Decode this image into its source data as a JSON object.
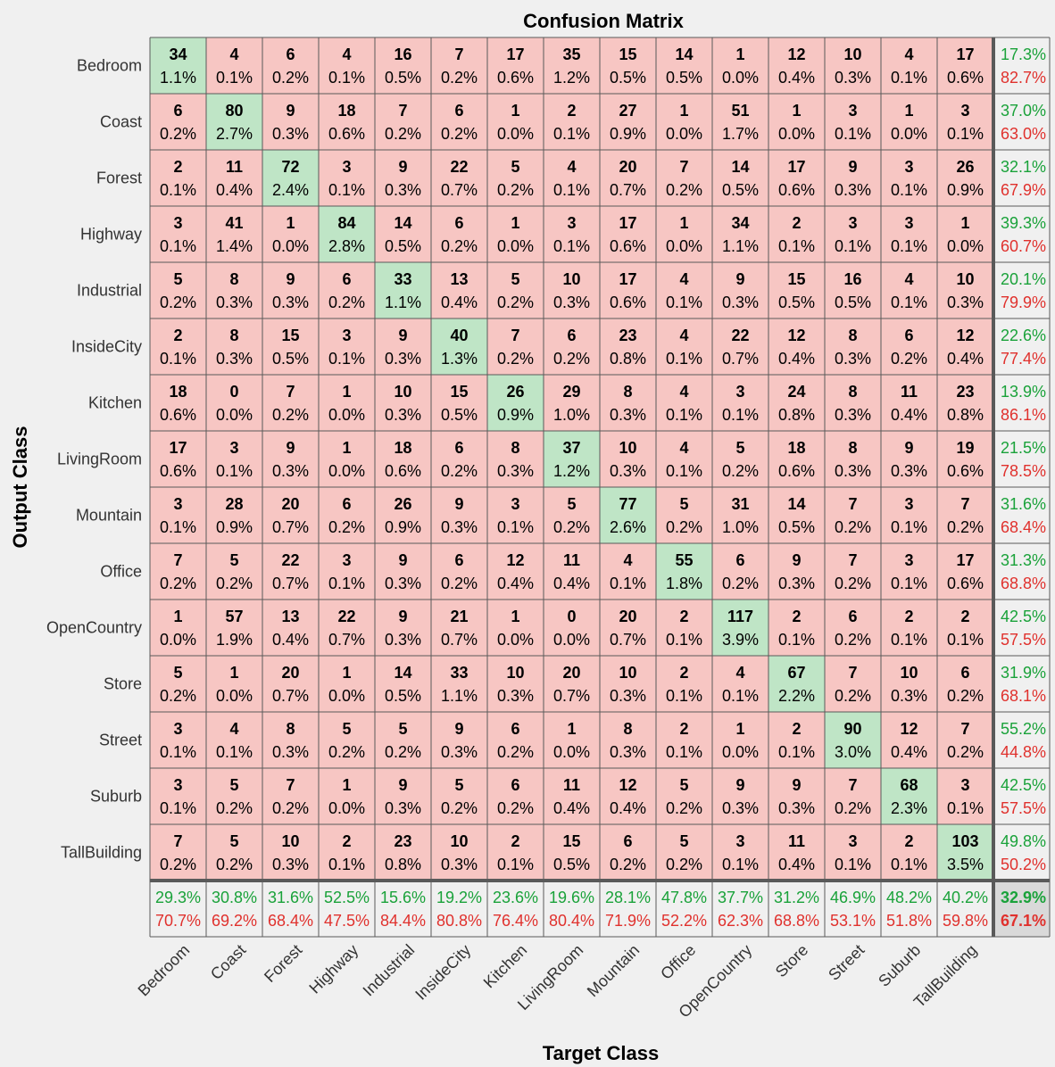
{
  "chart_data": {
    "type": "heatmap",
    "title": "Confusion Matrix",
    "xlabel": "Target Class",
    "ylabel": "Output Class",
    "classes": [
      "Bedroom",
      "Coast",
      "Forest",
      "Highway",
      "Industrial",
      "InsideCity",
      "Kitchen",
      "LivingRoom",
      "Mountain",
      "Office",
      "OpenCountry",
      "Store",
      "Street",
      "Suburb",
      "TallBuilding"
    ],
    "counts": [
      [
        34,
        4,
        6,
        4,
        16,
        7,
        17,
        35,
        15,
        14,
        1,
        12,
        10,
        4,
        17
      ],
      [
        6,
        80,
        9,
        18,
        7,
        6,
        1,
        2,
        27,
        1,
        51,
        1,
        3,
        1,
        3
      ],
      [
        2,
        11,
        72,
        3,
        9,
        22,
        5,
        4,
        20,
        7,
        14,
        17,
        9,
        3,
        26
      ],
      [
        3,
        41,
        1,
        84,
        14,
        6,
        1,
        3,
        17,
        1,
        34,
        2,
        3,
        3,
        1
      ],
      [
        5,
        8,
        9,
        6,
        33,
        13,
        5,
        10,
        17,
        4,
        9,
        15,
        16,
        4,
        10
      ],
      [
        2,
        8,
        15,
        3,
        9,
        40,
        7,
        6,
        23,
        4,
        22,
        12,
        8,
        6,
        12
      ],
      [
        18,
        0,
        7,
        1,
        10,
        15,
        26,
        29,
        8,
        4,
        3,
        24,
        8,
        11,
        23
      ],
      [
        17,
        3,
        9,
        1,
        18,
        6,
        8,
        37,
        10,
        4,
        5,
        18,
        8,
        9,
        19
      ],
      [
        3,
        28,
        20,
        6,
        26,
        9,
        3,
        5,
        77,
        5,
        31,
        14,
        7,
        3,
        7
      ],
      [
        7,
        5,
        22,
        3,
        9,
        6,
        12,
        11,
        4,
        55,
        6,
        9,
        7,
        3,
        17
      ],
      [
        1,
        57,
        13,
        22,
        9,
        21,
        1,
        0,
        20,
        2,
        117,
        2,
        6,
        2,
        2
      ],
      [
        5,
        1,
        20,
        1,
        14,
        33,
        10,
        20,
        10,
        2,
        4,
        67,
        7,
        10,
        6
      ],
      [
        3,
        4,
        8,
        5,
        5,
        9,
        6,
        1,
        8,
        2,
        1,
        2,
        90,
        12,
        7
      ],
      [
        3,
        5,
        7,
        1,
        9,
        5,
        6,
        11,
        12,
        5,
        9,
        9,
        7,
        68,
        3
      ],
      [
        7,
        5,
        10,
        2,
        23,
        10,
        2,
        15,
        6,
        5,
        3,
        11,
        3,
        2,
        103
      ]
    ],
    "percents": [
      [
        "1.1%",
        "0.1%",
        "0.2%",
        "0.1%",
        "0.5%",
        "0.2%",
        "0.6%",
        "1.2%",
        "0.5%",
        "0.5%",
        "0.0%",
        "0.4%",
        "0.3%",
        "0.1%",
        "0.6%"
      ],
      [
        "0.2%",
        "2.7%",
        "0.3%",
        "0.6%",
        "0.2%",
        "0.2%",
        "0.0%",
        "0.1%",
        "0.9%",
        "0.0%",
        "1.7%",
        "0.0%",
        "0.1%",
        "0.0%",
        "0.1%"
      ],
      [
        "0.1%",
        "0.4%",
        "2.4%",
        "0.1%",
        "0.3%",
        "0.7%",
        "0.2%",
        "0.1%",
        "0.7%",
        "0.2%",
        "0.5%",
        "0.6%",
        "0.3%",
        "0.1%",
        "0.9%"
      ],
      [
        "0.1%",
        "1.4%",
        "0.0%",
        "2.8%",
        "0.5%",
        "0.2%",
        "0.0%",
        "0.1%",
        "0.6%",
        "0.0%",
        "1.1%",
        "0.1%",
        "0.1%",
        "0.1%",
        "0.0%"
      ],
      [
        "0.2%",
        "0.3%",
        "0.3%",
        "0.2%",
        "1.1%",
        "0.4%",
        "0.2%",
        "0.3%",
        "0.6%",
        "0.1%",
        "0.3%",
        "0.5%",
        "0.5%",
        "0.1%",
        "0.3%"
      ],
      [
        "0.1%",
        "0.3%",
        "0.5%",
        "0.1%",
        "0.3%",
        "1.3%",
        "0.2%",
        "0.2%",
        "0.8%",
        "0.1%",
        "0.7%",
        "0.4%",
        "0.3%",
        "0.2%",
        "0.4%"
      ],
      [
        "0.6%",
        "0.0%",
        "0.2%",
        "0.0%",
        "0.3%",
        "0.5%",
        "0.9%",
        "1.0%",
        "0.3%",
        "0.1%",
        "0.1%",
        "0.8%",
        "0.3%",
        "0.4%",
        "0.8%"
      ],
      [
        "0.6%",
        "0.1%",
        "0.3%",
        "0.0%",
        "0.6%",
        "0.2%",
        "0.3%",
        "1.2%",
        "0.3%",
        "0.1%",
        "0.2%",
        "0.6%",
        "0.3%",
        "0.3%",
        "0.6%"
      ],
      [
        "0.1%",
        "0.9%",
        "0.7%",
        "0.2%",
        "0.9%",
        "0.3%",
        "0.1%",
        "0.2%",
        "2.6%",
        "0.2%",
        "1.0%",
        "0.5%",
        "0.2%",
        "0.1%",
        "0.2%"
      ],
      [
        "0.2%",
        "0.2%",
        "0.7%",
        "0.1%",
        "0.3%",
        "0.2%",
        "0.4%",
        "0.4%",
        "0.1%",
        "1.8%",
        "0.2%",
        "0.3%",
        "0.2%",
        "0.1%",
        "0.6%"
      ],
      [
        "0.0%",
        "1.9%",
        "0.4%",
        "0.7%",
        "0.3%",
        "0.7%",
        "0.0%",
        "0.0%",
        "0.7%",
        "0.1%",
        "3.9%",
        "0.1%",
        "0.2%",
        "0.1%",
        "0.1%"
      ],
      [
        "0.2%",
        "0.0%",
        "0.7%",
        "0.0%",
        "0.5%",
        "1.1%",
        "0.3%",
        "0.7%",
        "0.3%",
        "0.1%",
        "0.1%",
        "2.2%",
        "0.2%",
        "0.3%",
        "0.2%"
      ],
      [
        "0.1%",
        "0.1%",
        "0.3%",
        "0.2%",
        "0.2%",
        "0.3%",
        "0.2%",
        "0.0%",
        "0.3%",
        "0.1%",
        "0.0%",
        "0.1%",
        "3.0%",
        "0.4%",
        "0.2%"
      ],
      [
        "0.1%",
        "0.2%",
        "0.2%",
        "0.0%",
        "0.3%",
        "0.2%",
        "0.2%",
        "0.4%",
        "0.4%",
        "0.2%",
        "0.3%",
        "0.3%",
        "0.2%",
        "2.3%",
        "0.1%"
      ],
      [
        "0.2%",
        "0.2%",
        "0.3%",
        "0.1%",
        "0.8%",
        "0.3%",
        "0.1%",
        "0.5%",
        "0.2%",
        "0.2%",
        "0.1%",
        "0.4%",
        "0.1%",
        "0.1%",
        "3.5%"
      ]
    ],
    "row_summary": [
      [
        "17.3%",
        "82.7%"
      ],
      [
        "37.0%",
        "63.0%"
      ],
      [
        "32.1%",
        "67.9%"
      ],
      [
        "39.3%",
        "60.7%"
      ],
      [
        "20.1%",
        "79.9%"
      ],
      [
        "22.6%",
        "77.4%"
      ],
      [
        "13.9%",
        "86.1%"
      ],
      [
        "21.5%",
        "78.5%"
      ],
      [
        "31.6%",
        "68.4%"
      ],
      [
        "31.3%",
        "68.8%"
      ],
      [
        "42.5%",
        "57.5%"
      ],
      [
        "31.9%",
        "68.1%"
      ],
      [
        "55.2%",
        "44.8%"
      ],
      [
        "42.5%",
        "57.5%"
      ],
      [
        "49.8%",
        "50.2%"
      ]
    ],
    "col_summary": [
      [
        "29.3%",
        "70.7%"
      ],
      [
        "30.8%",
        "69.2%"
      ],
      [
        "31.6%",
        "68.4%"
      ],
      [
        "52.5%",
        "47.5%"
      ],
      [
        "15.6%",
        "84.4%"
      ],
      [
        "19.2%",
        "80.8%"
      ],
      [
        "23.6%",
        "76.4%"
      ],
      [
        "19.6%",
        "80.4%"
      ],
      [
        "28.1%",
        "71.9%"
      ],
      [
        "47.8%",
        "52.2%"
      ],
      [
        "37.7%",
        "62.3%"
      ],
      [
        "31.2%",
        "68.8%"
      ],
      [
        "46.9%",
        "53.1%"
      ],
      [
        "48.2%",
        "51.8%"
      ],
      [
        "40.2%",
        "59.8%"
      ]
    ],
    "overall": [
      "32.9%",
      "67.1%"
    ],
    "colors": {
      "correct": "#bfe5c6",
      "incorrect": "#f7c6c3",
      "summary": "#f0f0f0",
      "overall": "#d9d9d9",
      "good_text": "#1aa23a",
      "bad_text": "#e0312d",
      "grid": "#5a5a5a"
    }
  }
}
